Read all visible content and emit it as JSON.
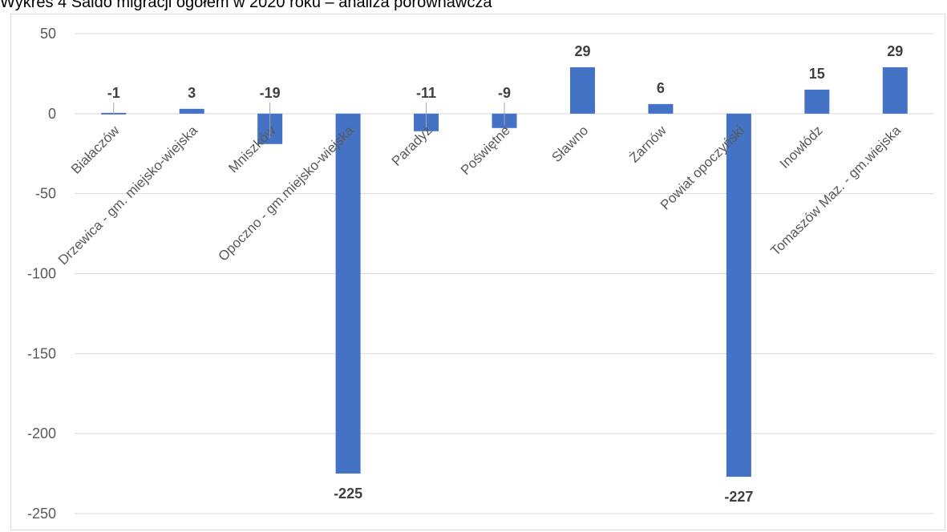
{
  "title": "Wykres 4 Saldo migracji ogółem w 2020 roku – analiza porównawcza",
  "colors": {
    "bar": "#4472c4",
    "grid": "#d9d9d9",
    "axis_text": "#595959",
    "label_text": "#404040"
  },
  "chart_data": {
    "type": "bar",
    "title": "Wykres 4 Saldo migracji ogółem w 2020 roku – analiza porównawcza",
    "xlabel": "",
    "ylabel": "",
    "ylim": [
      -250,
      50
    ],
    "yticks": [
      50,
      0,
      -50,
      -100,
      -150,
      -200,
      -250
    ],
    "grid": true,
    "legend": "none",
    "categories": [
      "Białaczów",
      "Drzewica - gm. miejsko-wiejska",
      "Mniszków",
      "Opoczno - gm.miejsko-wiejska",
      "Paradyż",
      "Poświętne",
      "Sławno",
      "Żarnów",
      "Powiat opoczyński",
      "Inowłódz",
      "Tomaszów Maz. - gm.wiejska"
    ],
    "values": [
      -1,
      3,
      -19,
      -225,
      -11,
      -9,
      29,
      6,
      -227,
      15,
      29
    ],
    "data_labels": [
      "-1",
      "3",
      "-19",
      "-225",
      "-11",
      "-9",
      "29",
      "6",
      "-227",
      "15",
      "29"
    ]
  }
}
